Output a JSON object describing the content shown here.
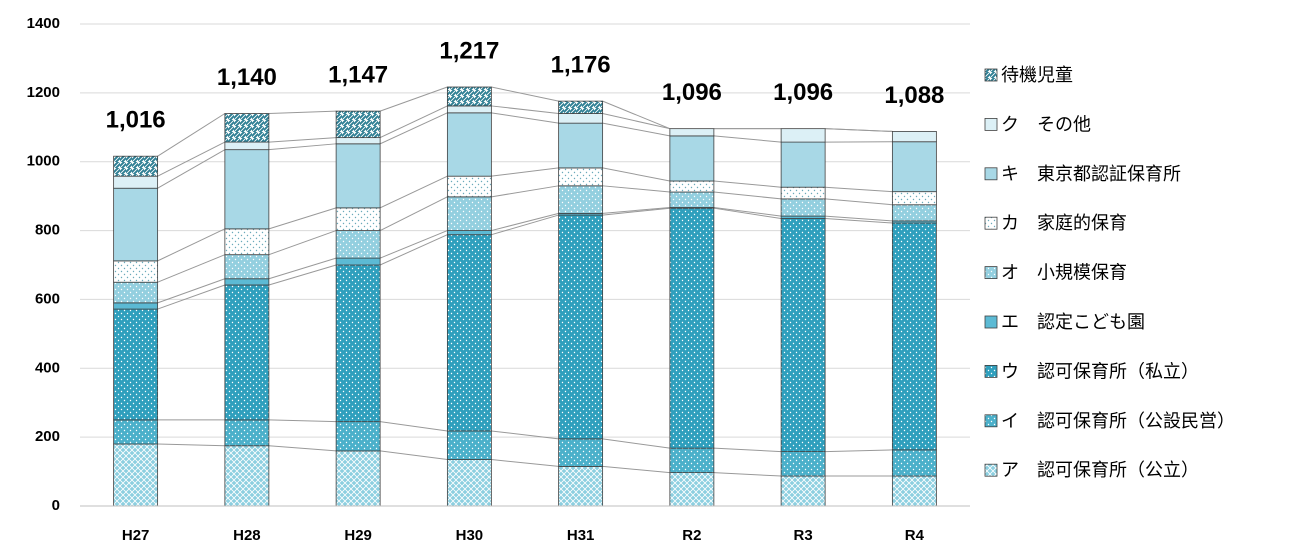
{
  "chart_data": {
    "type": "stacked_bar",
    "categories": [
      "H27",
      "H28",
      "H29",
      "H30",
      "H31",
      "R2",
      "R3",
      "R4"
    ],
    "series": [
      {
        "name": "ア　認可保育所（公立）",
        "color": "#8ccfe0",
        "pattern": "cross",
        "values": [
          180,
          175,
          160,
          135,
          115,
          97,
          87,
          87
        ]
      },
      {
        "name": "イ　認可保育所（公設民営）",
        "color": "#4bb0ca",
        "pattern": "dots",
        "values": [
          70,
          75,
          85,
          83,
          80,
          71,
          71,
          76
        ]
      },
      {
        "name": "ウ　認可保育所（私立）",
        "color": "#2f9fbd",
        "pattern": "dots",
        "values": [
          322,
          392,
          455,
          570,
          650,
          697,
          677,
          659
        ]
      },
      {
        "name": "エ　認定こども園",
        "color": "#5cbad4",
        "pattern": "none",
        "values": [
          18,
          18,
          20,
          12,
          5,
          2,
          7,
          6
        ]
      },
      {
        "name": "オ　小規模保育",
        "color": "#93cfdf",
        "pattern": "dots",
        "values": [
          60,
          70,
          80,
          98,
          80,
          45,
          50,
          47
        ]
      },
      {
        "name": "カ　家庭的保育",
        "color": "#ffffff",
        "pattern": "darkdots",
        "values": [
          62,
          75,
          66,
          60,
          52,
          32,
          34,
          38
        ]
      },
      {
        "name": "キ　東京都認証保育所",
        "color": "#a8d8e6",
        "pattern": "none",
        "values": [
          211,
          230,
          186,
          184,
          130,
          131,
          131,
          145
        ]
      },
      {
        "name": "ク　その他",
        "color": "#dcf0f6",
        "pattern": "none",
        "values": [
          35,
          22,
          18,
          20,
          28,
          21,
          39,
          30
        ]
      },
      {
        "name": "待機児童",
        "color": "#2f7f94",
        "pattern": "hatch",
        "values": [
          58,
          83,
          77,
          55,
          36,
          0,
          0,
          0
        ]
      }
    ],
    "totals": [
      1016,
      1140,
      1147,
      1217,
      1176,
      1096,
      1096,
      1088
    ],
    "total_labels": [
      "1,016",
      "1,140",
      "1,147",
      "1,217",
      "1,176",
      "1,096",
      "1,096",
      "1,088"
    ],
    "ylim": [
      0,
      1400
    ],
    "yticks": [
      0,
      200,
      400,
      600,
      800,
      1000,
      1200,
      1400
    ],
    "grid": true
  }
}
